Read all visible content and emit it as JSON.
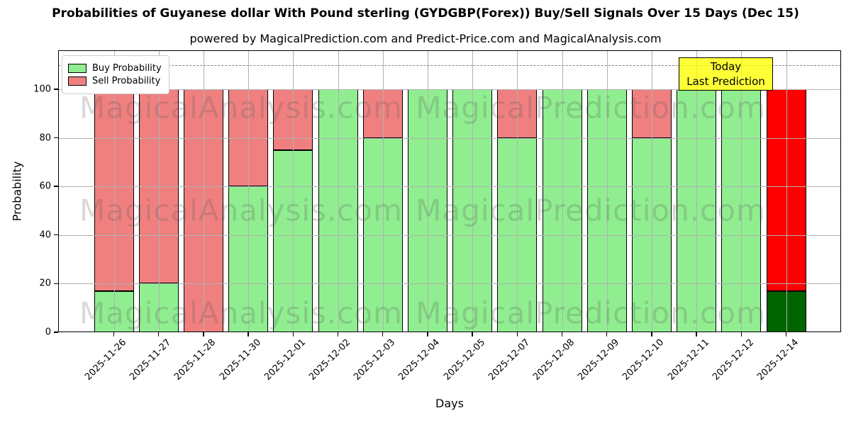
{
  "chart_data": {
    "type": "bar",
    "stacked": true,
    "title": "Probabilities of Guyanese dollar With Pound sterling (GYDGBP(Forex)) Buy/Sell Signals Over 15 Days (Dec 15)",
    "subtitle": "powered by MagicalPrediction.com and Predict-Price.com and MagicalAnalysis.com",
    "xlabel": "Days",
    "ylabel": "Probability",
    "ylim": [
      0,
      116
    ],
    "yticks": [
      0,
      20,
      40,
      60,
      80,
      100
    ],
    "grid": "on, gray, drawn above bars",
    "dashed_guide_y": 110,
    "categories": [
      "2025-11-26",
      "2025-11-27",
      "2025-11-28",
      "2025-11-30",
      "2025-12-01",
      "2025-12-02",
      "2025-12-03",
      "2025-12-04",
      "2025-12-05",
      "2025-12-07",
      "2025-12-08",
      "2025-12-09",
      "2025-12-10",
      "2025-12-11",
      "2025-12-12",
      "2025-12-14"
    ],
    "series": [
      {
        "name": "Buy Probability",
        "color": "#90ee90",
        "values": [
          17,
          20,
          0,
          60,
          75,
          100,
          80,
          100,
          100,
          80,
          100,
          100,
          80,
          100,
          100,
          17
        ]
      },
      {
        "name": "Sell Probability",
        "color": "#f08080",
        "values": [
          83,
          80,
          100,
          40,
          25,
          0,
          20,
          0,
          0,
          20,
          0,
          0,
          20,
          0,
          0,
          83
        ]
      }
    ],
    "last_bar_highlight": {
      "index": 15,
      "buy_color": "#006400",
      "sell_color": "#ff0000"
    },
    "legend_position": "upper left",
    "annotation": {
      "line1": "Today",
      "line2": "Last Prediction",
      "bg_color": "#ffff00",
      "position": "upper right"
    },
    "watermarks": [
      {
        "text": "MagicalAnalysis.com",
        "side": "left"
      },
      {
        "text": "MagicalPrediction.com",
        "side": "right"
      }
    ],
    "colors": {
      "grid": "#b0b0b0",
      "dashed_line": "#7f7f7f",
      "bar_edge": "#000000",
      "background": "#ffffff"
    }
  }
}
